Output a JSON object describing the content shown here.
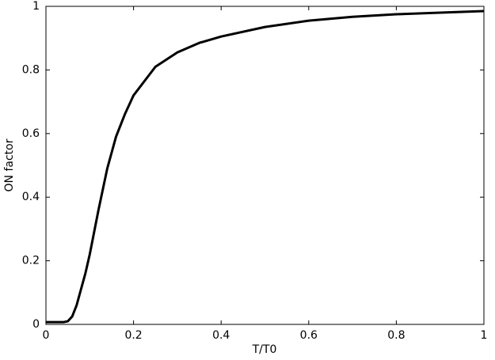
{
  "chart_data": {
    "type": "line",
    "xlabel": "T/T0",
    "ylabel": "ON factor",
    "x": [
      0,
      0.04,
      0.05,
      0.06,
      0.07,
      0.08,
      0.09,
      0.1,
      0.12,
      0.14,
      0.16,
      0.18,
      0.2,
      0.25,
      0.3,
      0.35,
      0.4,
      0.5,
      0.6,
      0.7,
      0.8,
      0.9,
      1
    ],
    "series": [
      {
        "color": "#000000",
        "values": [
          0.007,
          0.007,
          0.01,
          0.025,
          0.06,
          0.11,
          0.16,
          0.22,
          0.36,
          0.49,
          0.59,
          0.66,
          0.72,
          0.81,
          0.855,
          0.885,
          0.905,
          0.935,
          0.955,
          0.967,
          0.975,
          0.98,
          0.985
        ]
      }
    ],
    "xlim": [
      0,
      1
    ],
    "xticks": [
      0,
      0.2,
      0.4,
      0.6,
      0.8,
      1
    ],
    "ylim": [
      0,
      1
    ],
    "yticks": [
      0,
      0.2,
      0.4,
      0.6,
      0.8,
      1
    ]
  }
}
